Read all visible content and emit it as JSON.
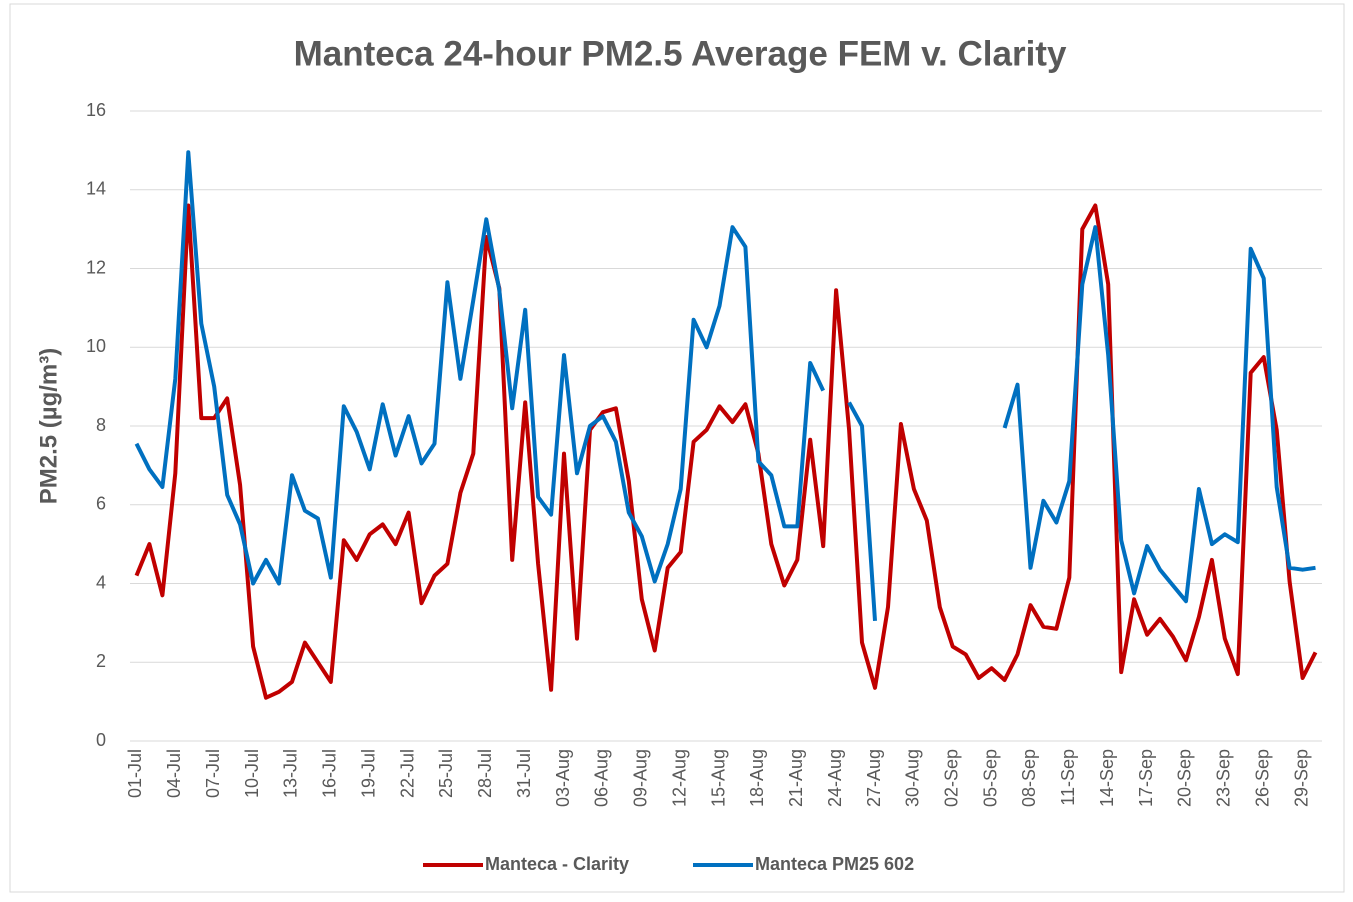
{
  "chart_data": {
    "type": "line",
    "title": "Manteca 24-hour PM2.5 Average FEM v. Clarity",
    "y_label": "PM2.5 (µg/m³)",
    "categories": [
      "01-Jul",
      null,
      null,
      "04-Jul",
      null,
      null,
      "07-Jul",
      null,
      null,
      "10-Jul",
      null,
      null,
      "13-Jul",
      null,
      null,
      "16-Jul",
      null,
      null,
      "19-Jul",
      null,
      null,
      "22-Jul",
      null,
      null,
      "25-Jul",
      null,
      null,
      "28-Jul",
      null,
      null,
      "31-Jul",
      null,
      null,
      "03-Aug",
      null,
      null,
      "06-Aug",
      null,
      null,
      "09-Aug",
      null,
      null,
      "12-Aug",
      null,
      null,
      "15-Aug",
      null,
      null,
      "18-Aug",
      null,
      null,
      "21-Aug",
      null,
      null,
      "24-Aug",
      null,
      null,
      "27-Aug",
      null,
      null,
      "30-Aug",
      null,
      null,
      "02-Sep",
      null,
      null,
      "05-Sep",
      null,
      null,
      "08-Sep",
      null,
      null,
      "11-Sep",
      null,
      null,
      "14-Sep",
      null,
      null,
      "17-Sep",
      null,
      null,
      "20-Sep",
      null,
      null,
      "23-Sep",
      null,
      null,
      "26-Sep",
      null,
      null,
      "29-Sep",
      null
    ],
    "series": [
      {
        "name": "Manteca - Clarity",
        "color": "#c00000",
        "values": [
          4.2,
          5.0,
          3.7,
          6.8,
          13.6,
          8.2,
          8.2,
          8.7,
          6.5,
          2.4,
          1.1,
          1.25,
          1.5,
          2.5,
          2.0,
          1.5,
          5.1,
          4.6,
          5.25,
          5.5,
          5.0,
          5.8,
          3.5,
          4.2,
          4.5,
          6.3,
          7.3,
          12.8,
          11.5,
          4.6,
          8.6,
          4.5,
          1.3,
          7.3,
          2.6,
          7.9,
          8.35,
          8.45,
          6.6,
          3.6,
          2.3,
          4.4,
          4.8,
          7.6,
          7.9,
          8.5,
          8.1,
          8.55,
          7.3,
          5.0,
          3.95,
          4.6,
          7.65,
          4.95,
          11.45,
          7.9,
          2.5,
          1.35,
          3.4,
          8.05,
          6.4,
          5.6,
          3.4,
          2.4,
          2.2,
          1.6,
          1.85,
          1.55,
          2.2,
          3.45,
          2.9,
          2.85,
          4.15,
          13.0,
          13.6,
          11.6,
          1.75,
          3.6,
          2.7,
          3.1,
          2.65,
          2.05,
          3.15,
          4.6,
          2.6,
          1.7,
          9.35,
          9.75,
          7.9,
          4.05,
          1.6,
          2.25
        ]
      },
      {
        "name": "Manteca PM25 602",
        "color": "#0070c0",
        "values": [
          7.55,
          6.9,
          6.45,
          9.2,
          14.95,
          10.6,
          9.0,
          6.25,
          5.5,
          4.0,
          4.6,
          4.0,
          6.75,
          5.85,
          5.65,
          4.15,
          8.5,
          7.85,
          6.9,
          8.55,
          7.25,
          8.25,
          7.05,
          7.55,
          11.65,
          9.2,
          11.2,
          13.25,
          11.45,
          8.45,
          10.95,
          6.2,
          5.75,
          9.8,
          6.8,
          8.0,
          8.25,
          7.6,
          5.8,
          5.2,
          4.05,
          5.0,
          6.4,
          10.7,
          10.0,
          11.05,
          13.05,
          12.55,
          7.1,
          6.75,
          5.45,
          5.45,
          9.6,
          8.9,
          null,
          8.6,
          8.0,
          3.05,
          null,
          null,
          null,
          null,
          null,
          null,
          null,
          null,
          null,
          7.95,
          9.05,
          4.4,
          6.1,
          5.55,
          6.6,
          11.6,
          13.05,
          9.8,
          5.1,
          3.75,
          4.95,
          4.35,
          3.95,
          3.55,
          6.4,
          5.0,
          5.25,
          5.05,
          12.5,
          11.75,
          6.45,
          4.4,
          4.35,
          4.4
        ]
      }
    ],
    "ylim": [
      0,
      16
    ],
    "yticks": [
      0,
      2,
      4,
      6,
      8,
      10,
      12,
      14,
      16
    ],
    "grid": true,
    "legend": "bottom"
  }
}
